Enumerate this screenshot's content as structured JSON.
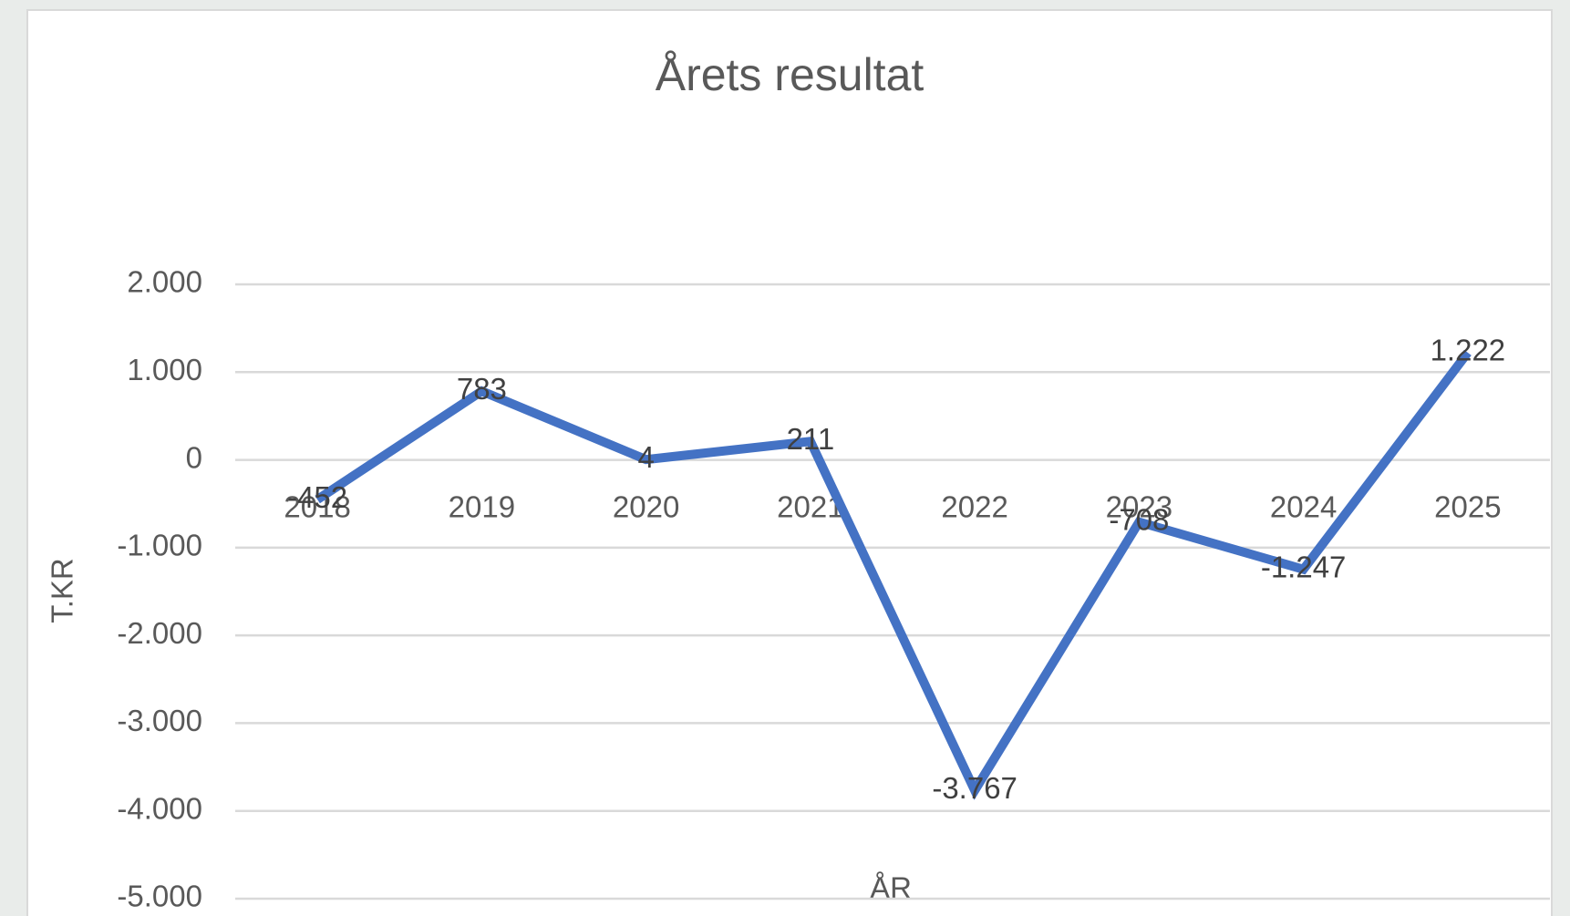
{
  "chart_data": {
    "type": "line",
    "title": "Årets resultat",
    "x_label": "ÅR",
    "y_label": "T.KR",
    "categories": [
      "2018",
      "2019",
      "2020",
      "2021",
      "2022",
      "2023",
      "2024",
      "2025"
    ],
    "series": [
      {
        "name": "Årets resultat",
        "color": "#4472c4",
        "values": [
          -452,
          783,
          4,
          211,
          -3767,
          -708,
          -1247,
          1222
        ],
        "value_labels": [
          "-452",
          "783",
          "4",
          "211",
          "-3.767",
          "-708",
          "-1.247",
          "1.222"
        ]
      }
    ],
    "ylim": [
      -5000,
      2000
    ],
    "yticks": [
      {
        "value": 2000,
        "label": "2.000"
      },
      {
        "value": 1000,
        "label": "1.000"
      },
      0,
      {
        "value": -1000,
        "label": "-1.000"
      },
      {
        "value": -2000,
        "label": "-2.000"
      },
      {
        "value": -3000,
        "label": "-3.000"
      },
      {
        "value": -4000,
        "label": "-4.000"
      },
      {
        "value": -5000,
        "label": "-5.000"
      }
    ],
    "grid": true
  }
}
